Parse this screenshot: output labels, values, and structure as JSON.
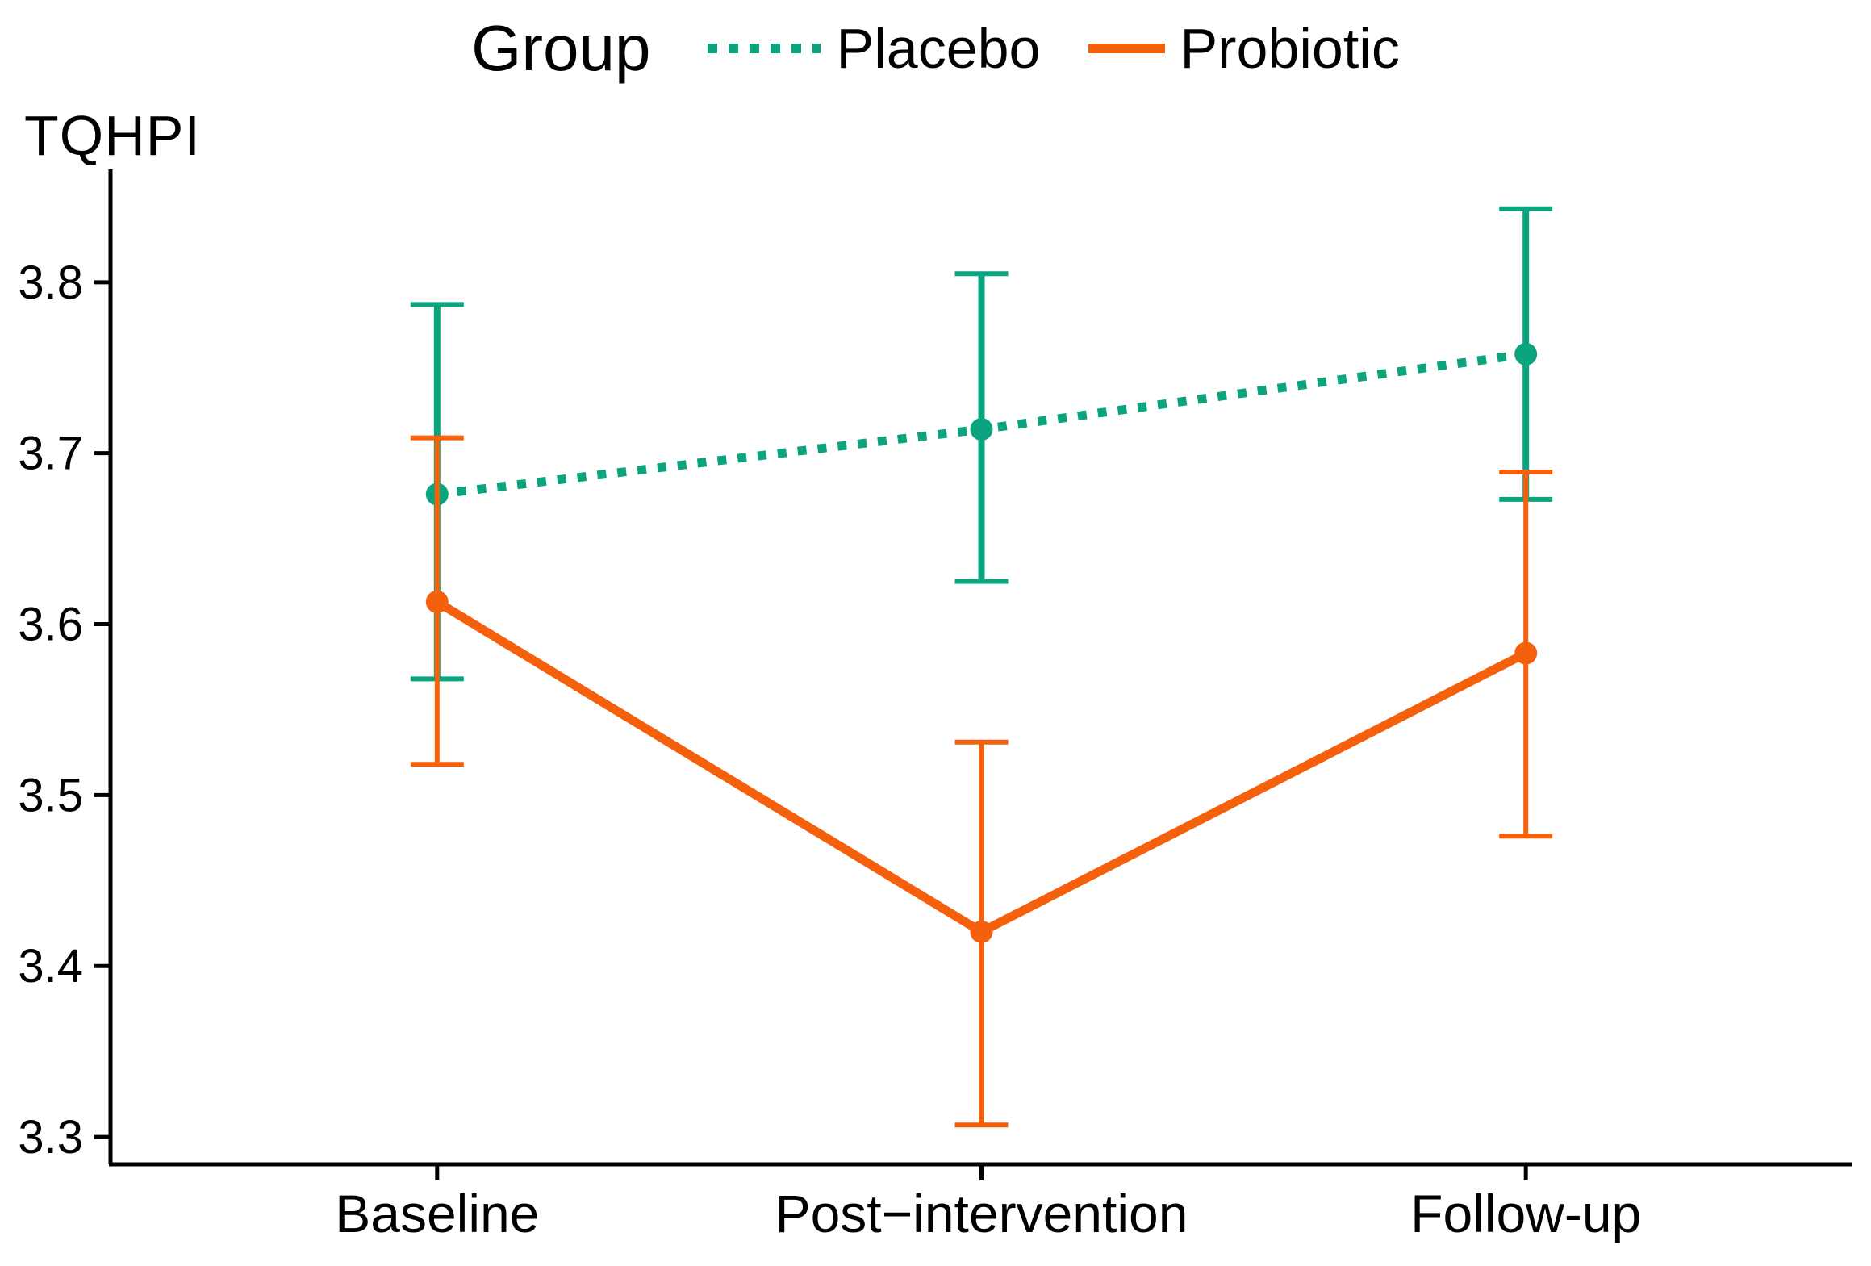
{
  "page": {
    "background": "#FFFFFF"
  },
  "legend": {
    "title": "Group",
    "items": [
      {
        "label": "Placebo",
        "style": "dotted"
      },
      {
        "label": "Probiotic",
        "style": "solid"
      }
    ]
  },
  "colors": {
    "placebo": "#0CA47E",
    "probiotic": "#F4600C",
    "axis": "#000000"
  },
  "chart_data": {
    "type": "line",
    "title": "",
    "xlabel": "",
    "ylabel": "TQHPI",
    "categories": [
      "Baseline",
      "Post−intervention",
      "Follow-up"
    ],
    "yticks": [
      "3.3",
      "3.4",
      "3.5",
      "3.6",
      "3.7",
      "3.8"
    ],
    "ylim": [
      3.284,
      3.866
    ],
    "grid": false,
    "legend_position": "top-center",
    "error_bars": "ci",
    "series": [
      {
        "name": "Placebo",
        "color": "#0CA47E",
        "line_style": "dotted",
        "marker": "circle",
        "points": [
          {
            "category": "Baseline",
            "mean": 3.676,
            "ci_low": 3.568,
            "ci_high": 3.787
          },
          {
            "category": "Post−intervention",
            "mean": 3.714,
            "ci_low": 3.625,
            "ci_high": 3.805
          },
          {
            "category": "Follow-up",
            "mean": 3.758,
            "ci_low": 3.673,
            "ci_high": 3.843
          }
        ]
      },
      {
        "name": "Probiotic",
        "color": "#F4600C",
        "line_style": "solid",
        "marker": "circle",
        "points": [
          {
            "category": "Baseline",
            "mean": 3.613,
            "ci_low": 3.518,
            "ci_high": 3.709
          },
          {
            "category": "Post−intervention",
            "mean": 3.42,
            "ci_low": 3.307,
            "ci_high": 3.531
          },
          {
            "category": "Follow-up",
            "mean": 3.583,
            "ci_low": 3.476,
            "ci_high": 3.689
          }
        ]
      }
    ]
  }
}
